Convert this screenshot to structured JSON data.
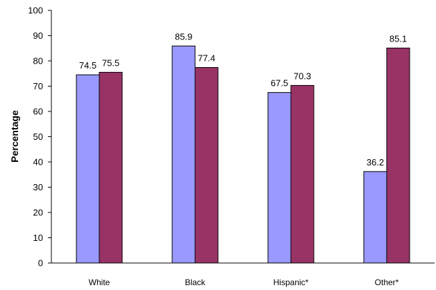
{
  "chart_data": {
    "type": "bar",
    "categories": [
      "White",
      "Black",
      "Hispanic*",
      "Other*"
    ],
    "series": [
      {
        "values": [
          74.5,
          85.9,
          67.5,
          36.2
        ],
        "color": "#9999ff"
      },
      {
        "values": [
          75.5,
          77.4,
          70.3,
          85.1
        ],
        "color": "#993366"
      }
    ],
    "title": "",
    "xlabel": "",
    "ylabel": "Percentage",
    "ylim": [
      0,
      100
    ],
    "yticks": [
      "0",
      "10",
      "20",
      "30",
      "40",
      "50",
      "60",
      "70",
      "80",
      "90",
      "100"
    ],
    "grid": false,
    "legend": "none"
  }
}
